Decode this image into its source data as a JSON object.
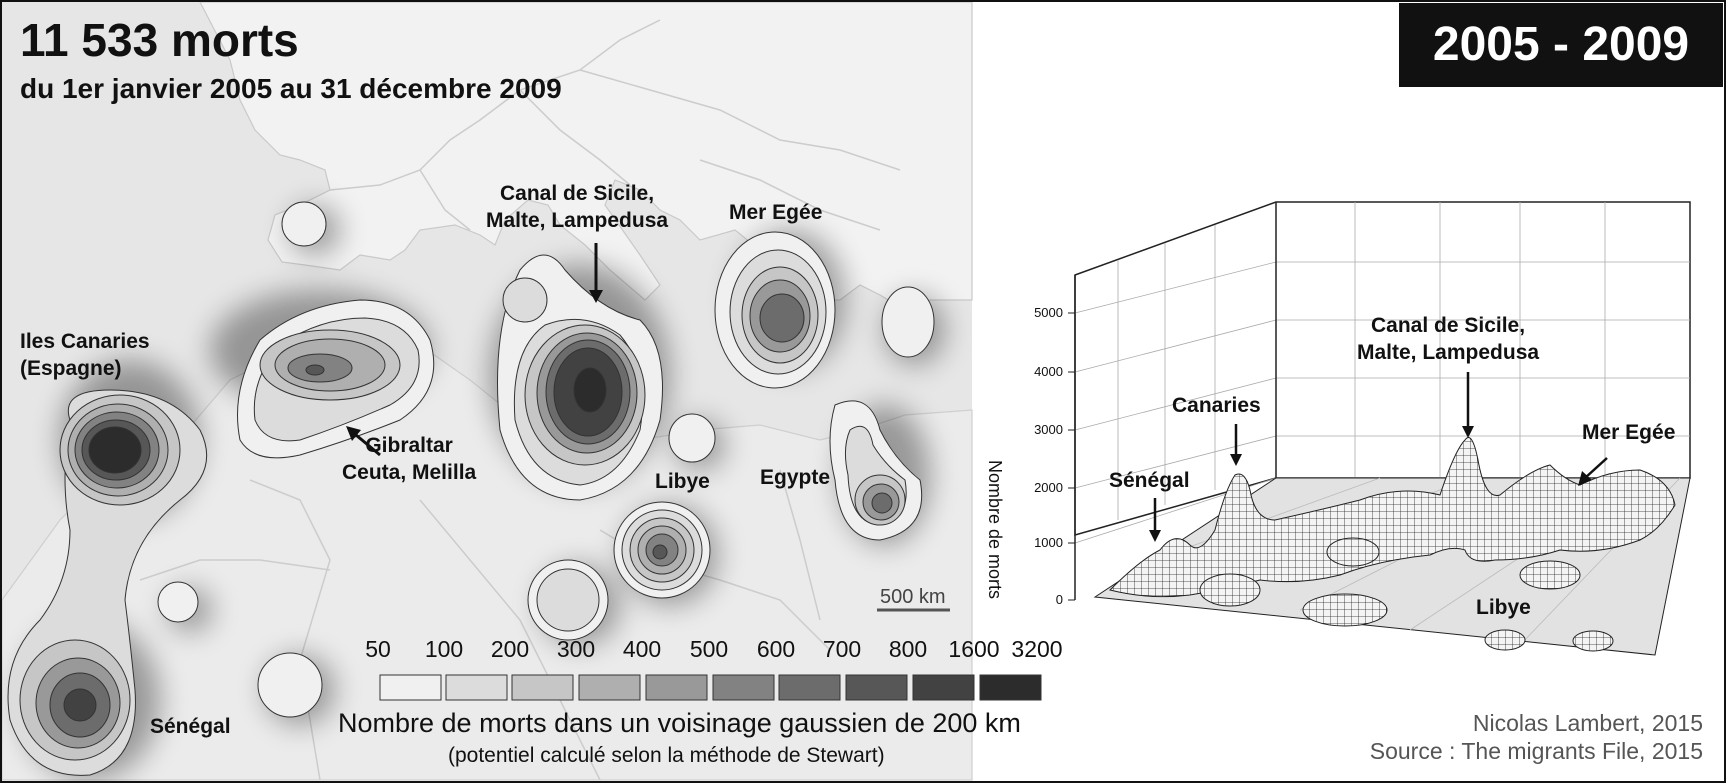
{
  "header": {
    "title": "11 533 morts",
    "subtitle": "du 1er janvier 2005 au 31 décembre 2009",
    "period": "2005 - 2009"
  },
  "map": {
    "labels": {
      "canaries": [
        "Iles Canaries",
        "(Espagne)"
      ],
      "gibraltar": [
        "Gibraltar",
        "Ceuta, Melilla"
      ],
      "sicile": [
        "Canal de Sicile,",
        "Malte, Lampedusa"
      ],
      "egee": "Mer Egée",
      "libye": "Libye",
      "egypte": "Egypte",
      "senegal": "Sénégal"
    },
    "scale_bar": "500 km"
  },
  "legend": {
    "thresholds": [
      "50",
      "100",
      "200",
      "300",
      "400",
      "500",
      "600",
      "700",
      "800",
      "1600",
      "3200"
    ],
    "colors": [
      "#f0f0f0",
      "#dcdcdc",
      "#c6c6c6",
      "#afafaf",
      "#999999",
      "#828282",
      "#6c6c6c",
      "#575757",
      "#424242",
      "#2c2c2c"
    ],
    "title": "Nombre de morts dans un voisinage gaussien de 200 km",
    "subtitle": "(potentiel calculé selon la méthode de Stewart)"
  },
  "surface3d": {
    "ylabel": "Nombre de morts",
    "ticks": [
      "5000",
      "4000",
      "3000",
      "2000",
      "1000",
      "0"
    ],
    "peaks": {
      "senegal": "Sénégal",
      "canaries": "Canaries",
      "sicile": [
        "Canal de Sicile,",
        "Malte, Lampedusa"
      ],
      "egee": "Mer Egée",
      "libye": "Libye"
    }
  },
  "credits": {
    "author": "Nicolas Lambert, 2015",
    "source": "Source : The migrants File, 2015"
  }
}
